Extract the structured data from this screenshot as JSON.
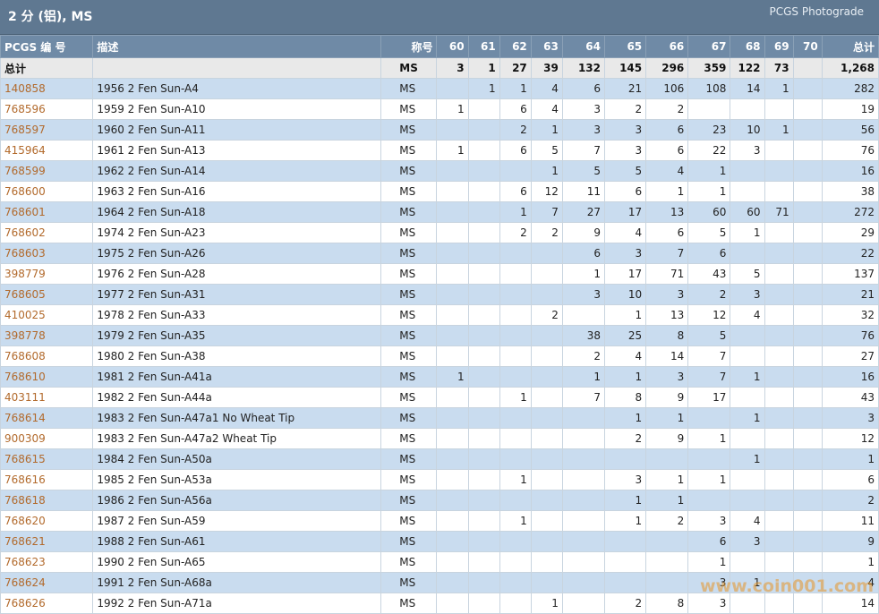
{
  "header": {
    "title": "2 分 (铝), MS",
    "brand": "PCGS Photograde"
  },
  "columns": [
    "PCGS 编 号",
    "描述",
    "称号",
    "60",
    "61",
    "62",
    "63",
    "64",
    "65",
    "66",
    "67",
    "68",
    "69",
    "70",
    "总计"
  ],
  "total_row": {
    "label": "总计",
    "desc": "",
    "grade": "MS",
    "counts": [
      "3",
      "1",
      "27",
      "39",
      "132",
      "145",
      "296",
      "359",
      "122",
      "73",
      ""
    ],
    "total": "1,268"
  },
  "rows": [
    {
      "code": "140858",
      "desc": "1956 2 Fen Sun-A4",
      "grade": "MS",
      "counts": [
        "",
        "1",
        "1",
        "4",
        "6",
        "21",
        "106",
        "108",
        "14",
        "1",
        ""
      ],
      "total": "282"
    },
    {
      "code": "768596",
      "desc": "1959 2 Fen Sun-A10",
      "grade": "MS",
      "counts": [
        "1",
        "",
        "6",
        "4",
        "3",
        "2",
        "2",
        "",
        "",
        "",
        ""
      ],
      "total": "19"
    },
    {
      "code": "768597",
      "desc": "1960 2 Fen Sun-A11",
      "grade": "MS",
      "counts": [
        "",
        "",
        "2",
        "1",
        "3",
        "3",
        "6",
        "23",
        "10",
        "1",
        ""
      ],
      "total": "56"
    },
    {
      "code": "415964",
      "desc": "1961 2 Fen Sun-A13",
      "grade": "MS",
      "counts": [
        "1",
        "",
        "6",
        "5",
        "7",
        "3",
        "6",
        "22",
        "3",
        "",
        ""
      ],
      "total": "76"
    },
    {
      "code": "768599",
      "desc": "1962 2 Fen Sun-A14",
      "grade": "MS",
      "counts": [
        "",
        "",
        "",
        "1",
        "5",
        "5",
        "4",
        "1",
        "",
        "",
        ""
      ],
      "total": "16"
    },
    {
      "code": "768600",
      "desc": "1963 2 Fen Sun-A16",
      "grade": "MS",
      "counts": [
        "",
        "",
        "6",
        "12",
        "11",
        "6",
        "1",
        "1",
        "",
        "",
        ""
      ],
      "total": "38"
    },
    {
      "code": "768601",
      "desc": "1964 2 Fen Sun-A18",
      "grade": "MS",
      "counts": [
        "",
        "",
        "1",
        "7",
        "27",
        "17",
        "13",
        "60",
        "60",
        "71",
        ""
      ],
      "total": "272"
    },
    {
      "code": "768602",
      "desc": "1974 2 Fen Sun-A23",
      "grade": "MS",
      "counts": [
        "",
        "",
        "2",
        "2",
        "9",
        "4",
        "6",
        "5",
        "1",
        "",
        ""
      ],
      "total": "29"
    },
    {
      "code": "768603",
      "desc": "1975 2 Fen Sun-A26",
      "grade": "MS",
      "counts": [
        "",
        "",
        "",
        "",
        "6",
        "3",
        "7",
        "6",
        "",
        "",
        ""
      ],
      "total": "22"
    },
    {
      "code": "398779",
      "desc": "1976 2 Fen Sun-A28",
      "grade": "MS",
      "counts": [
        "",
        "",
        "",
        "",
        "1",
        "17",
        "71",
        "43",
        "5",
        "",
        ""
      ],
      "total": "137"
    },
    {
      "code": "768605",
      "desc": "1977 2 Fen Sun-A31",
      "grade": "MS",
      "counts": [
        "",
        "",
        "",
        "",
        "3",
        "10",
        "3",
        "2",
        "3",
        "",
        ""
      ],
      "total": "21"
    },
    {
      "code": "410025",
      "desc": "1978 2 Fen Sun-A33",
      "grade": "MS",
      "counts": [
        "",
        "",
        "",
        "2",
        "",
        "1",
        "13",
        "12",
        "4",
        "",
        ""
      ],
      "total": "32"
    },
    {
      "code": "398778",
      "desc": "1979 2 Fen Sun-A35",
      "grade": "MS",
      "counts": [
        "",
        "",
        "",
        "",
        "38",
        "25",
        "8",
        "5",
        "",
        "",
        ""
      ],
      "total": "76"
    },
    {
      "code": "768608",
      "desc": "1980 2 Fen Sun-A38",
      "grade": "MS",
      "counts": [
        "",
        "",
        "",
        "",
        "2",
        "4",
        "14",
        "7",
        "",
        "",
        ""
      ],
      "total": "27"
    },
    {
      "code": "768610",
      "desc": "1981 2 Fen Sun-A41a",
      "grade": "MS",
      "counts": [
        "1",
        "",
        "",
        "",
        "1",
        "1",
        "3",
        "7",
        "1",
        "",
        ""
      ],
      "total": "16"
    },
    {
      "code": "403111",
      "desc": "1982 2 Fen Sun-A44a",
      "grade": "MS",
      "counts": [
        "",
        "",
        "1",
        "",
        "7",
        "8",
        "9",
        "17",
        "",
        "",
        ""
      ],
      "total": "43"
    },
    {
      "code": "768614",
      "desc": "1983 2 Fen Sun-A47a1 No Wheat Tip",
      "grade": "MS",
      "counts": [
        "",
        "",
        "",
        "",
        "",
        "1",
        "1",
        "",
        "1",
        "",
        ""
      ],
      "total": "3"
    },
    {
      "code": "900309",
      "desc": "1983 2 Fen Sun-A47a2 Wheat Tip",
      "grade": "MS",
      "counts": [
        "",
        "",
        "",
        "",
        "",
        "2",
        "9",
        "1",
        "",
        "",
        ""
      ],
      "total": "12"
    },
    {
      "code": "768615",
      "desc": "1984 2 Fen Sun-A50a",
      "grade": "MS",
      "counts": [
        "",
        "",
        "",
        "",
        "",
        "",
        "",
        "",
        "1",
        "",
        ""
      ],
      "total": "1"
    },
    {
      "code": "768616",
      "desc": "1985 2 Fen Sun-A53a",
      "grade": "MS",
      "counts": [
        "",
        "",
        "1",
        "",
        "",
        "3",
        "1",
        "1",
        "",
        "",
        ""
      ],
      "total": "6"
    },
    {
      "code": "768618",
      "desc": "1986 2 Fen Sun-A56a",
      "grade": "MS",
      "counts": [
        "",
        "",
        "",
        "",
        "",
        "1",
        "1",
        "",
        "",
        "",
        ""
      ],
      "total": "2"
    },
    {
      "code": "768620",
      "desc": "1987 2 Fen Sun-A59",
      "grade": "MS",
      "counts": [
        "",
        "",
        "1",
        "",
        "",
        "1",
        "2",
        "3",
        "4",
        "",
        ""
      ],
      "total": "11"
    },
    {
      "code": "768621",
      "desc": "1988 2 Fen Sun-A61",
      "grade": "MS",
      "counts": [
        "",
        "",
        "",
        "",
        "",
        "",
        "",
        "6",
        "3",
        "",
        ""
      ],
      "total": "9"
    },
    {
      "code": "768623",
      "desc": "1990 2 Fen Sun-A65",
      "grade": "MS",
      "counts": [
        "",
        "",
        "",
        "",
        "",
        "",
        "",
        "1",
        "",
        "",
        ""
      ],
      "total": "1"
    },
    {
      "code": "768624",
      "desc": "1991 2 Fen Sun-A68a",
      "grade": "MS",
      "counts": [
        "",
        "",
        "",
        "",
        "",
        "",
        "",
        "3",
        "1",
        "",
        ""
      ],
      "total": "4"
    },
    {
      "code": "768626",
      "desc": "1992 2 Fen Sun-A71a",
      "grade": "MS",
      "counts": [
        "",
        "",
        "",
        "1",
        "",
        "2",
        "8",
        "3",
        "",
        "",
        ""
      ],
      "total": "14"
    }
  ],
  "watermark": "www.coin001.com",
  "colors": {
    "header_bg": "#5f7891",
    "column_header_bg": "#6f8aa6",
    "row_alt_bg": "#c9dcef",
    "code_link": "#b26a2c"
  }
}
